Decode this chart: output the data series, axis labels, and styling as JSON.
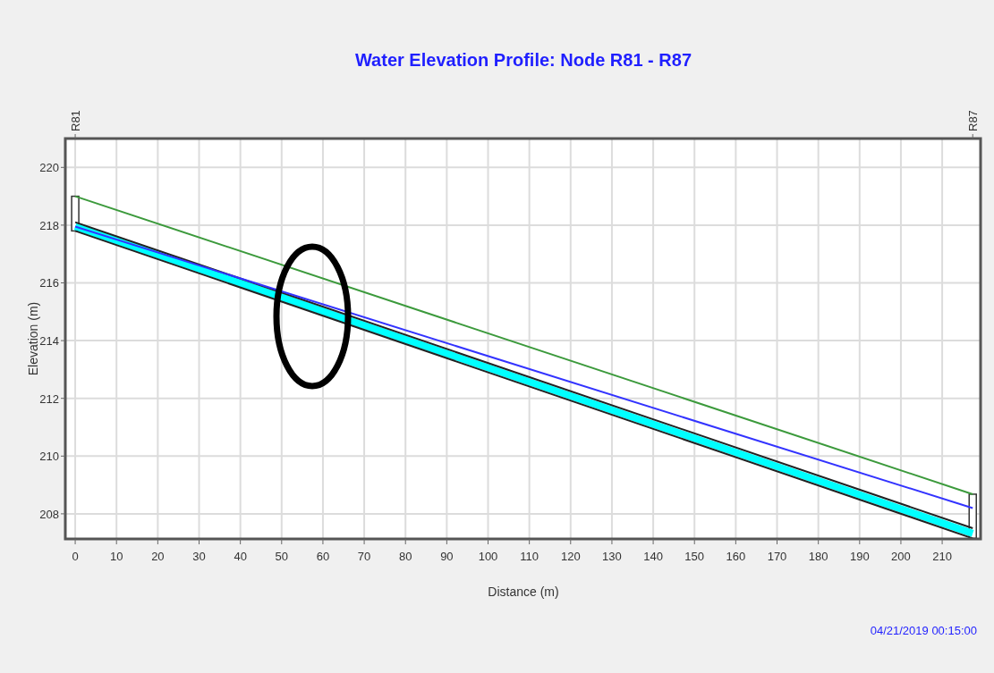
{
  "chart_data": {
    "type": "line",
    "title": "Water Elevation Profile: Node R81 - R87",
    "xlabel": "Distance (m)",
    "ylabel": "Elevation (m)",
    "x": [
      0,
      217.4
    ],
    "series": [
      {
        "color": "#ffffff",
        "type": "bar",
        "base": [
          217.8,
          207.15
        ],
        "values": [
          1.2,
          1.53
        ]
      },
      {
        "color": "#00ffff",
        "values": [
          217.95,
          207.32
        ]
      },
      {
        "color": "#222222",
        "values": [
          217.8,
          207.15
        ]
      },
      {
        "color": "#222222",
        "values": [
          218.1,
          207.5
        ]
      },
      {
        "color": "#3333ff",
        "values": [
          217.95,
          208.2
        ]
      },
      {
        "color": "#3c9a3c",
        "values": [
          219.0,
          208.68
        ]
      }
    ],
    "xlim": [
      -2.4,
      219.3
    ],
    "xticks": [
      0,
      10,
      20,
      30,
      40,
      50,
      60,
      70,
      80,
      90,
      100,
      110,
      120,
      130,
      140,
      150,
      160,
      170,
      180,
      190,
      200,
      210
    ],
    "ylim": [
      207.13,
      221
    ],
    "yticks": [
      208,
      210,
      212,
      214,
      216,
      218,
      220
    ],
    "grid": true,
    "annotations": [
      {
        "text": "R81",
        "x": 0
      },
      {
        "text": "R87",
        "x": 217.4
      },
      "04/21/2019 00:15:00"
    ]
  }
}
